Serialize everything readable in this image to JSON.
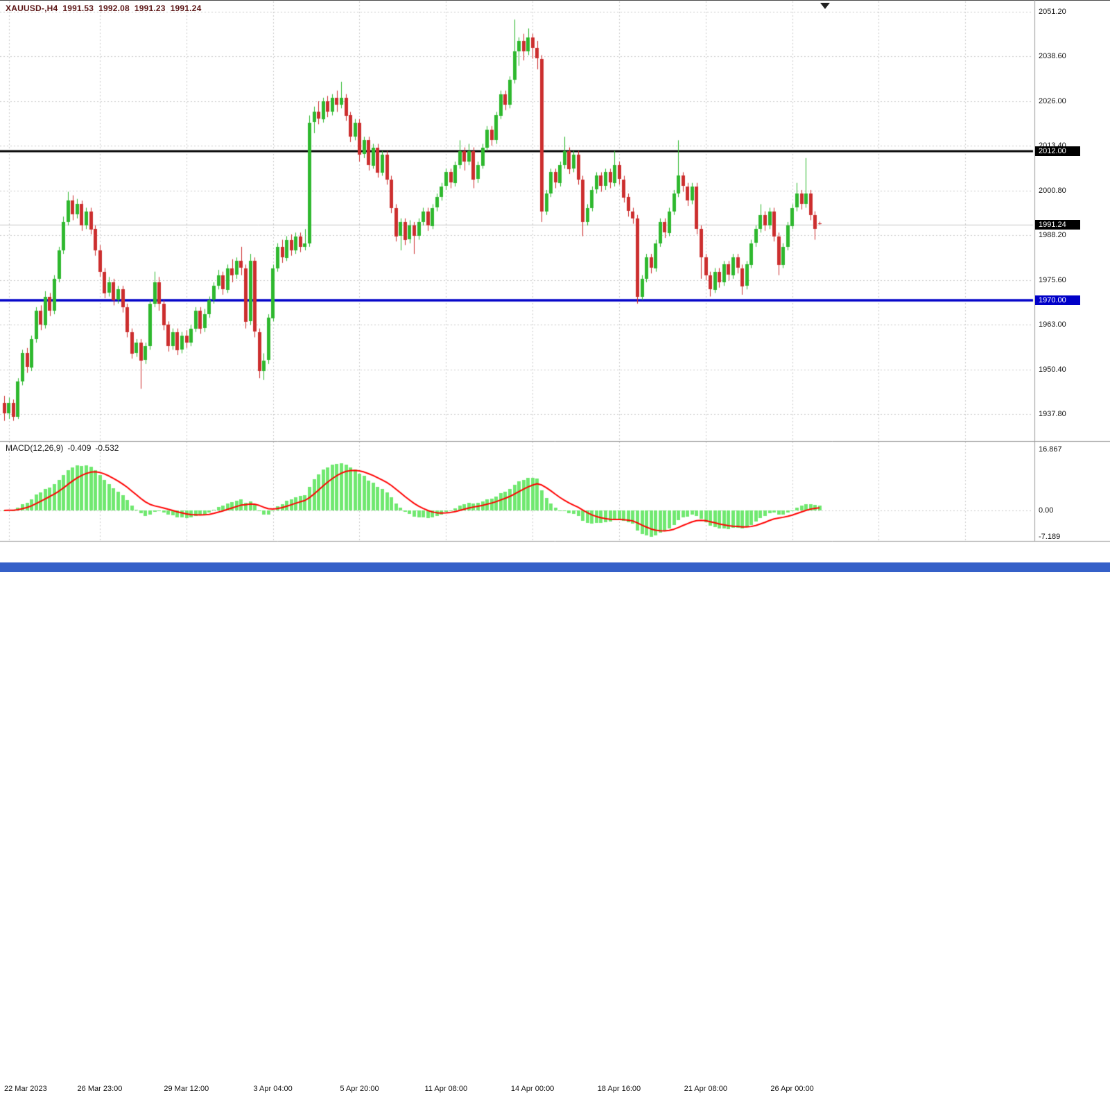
{
  "header": {
    "symbol_period": "XAUUSD-,H4",
    "open": "1991.53",
    "high": "1992.08",
    "low": "1991.23",
    "close": "1991.24",
    "color": "#5b1414"
  },
  "macd_header": {
    "label": "MACD(12,26,9)",
    "main_value": "-0.409",
    "signal_value": "-0.532"
  },
  "price_axis": {
    "labels": [
      "2051.20",
      "2038.60",
      "2026.00",
      "2013.40",
      "2000.80",
      "1988.20",
      "1975.60",
      "1963.00",
      "1950.40",
      "1937.80"
    ],
    "values": [
      2051.2,
      2038.6,
      2026.0,
      2013.4,
      2000.8,
      1988.2,
      1975.6,
      1963.0,
      1950.4,
      1937.8
    ]
  },
  "macd_axis": {
    "labels": [
      "16.867",
      "0.00",
      "-7.189"
    ],
    "values": [
      16.867,
      0,
      -7.189
    ]
  },
  "time_axis": {
    "labels": [
      "22 Mar 2023",
      "26 Mar 23:00",
      "29 Mar 12:00",
      "3 Apr 04:00",
      "5 Apr 20:00",
      "11 Apr 08:00",
      "14 Apr 00:00",
      "18 Apr 16:00",
      "21 Apr 08:00",
      "26 Apr 00:00"
    ],
    "indices": [
      1,
      21,
      40,
      59,
      78,
      97,
      116,
      135,
      154,
      173
    ],
    "future_grid_indices": [
      192,
      211
    ]
  },
  "levels": {
    "resistance": {
      "label": "2012.00",
      "price": 2012.0,
      "color": "#000000",
      "badge_bg": "#000000"
    },
    "current": {
      "label": "1991.24",
      "price": 1991.24,
      "color": "#bdbdbd",
      "badge_bg": "#000000"
    },
    "support": {
      "label": "1970.00",
      "price": 1970.0,
      "color": "#0000c8",
      "badge_bg": "#0000c8"
    }
  },
  "colors": {
    "background": "#ffffff",
    "grid": "#c9c9c9",
    "candle_up": "#2eb82e",
    "candle_down": "#cc2e2e",
    "macd_histogram": "#70e870",
    "macd_signal": "#ff0000",
    "separator": "#9a9a9a",
    "current_price_line": "#c4c4c4",
    "bottom_bar": "#3560c8",
    "axis_text": "#111111"
  },
  "chart_data": {
    "type": "candlestick",
    "title": "XAUUSD-,H4",
    "symbol": "XAUUSD-",
    "timeframe": "H4",
    "ylim": [
      1930.5,
      2054.5
    ],
    "y_tick_labels": [
      "2051.20",
      "2038.60",
      "2026.00",
      "2013.40",
      "2000.80",
      "1988.20",
      "1975.60",
      "1963.00",
      "1950.40",
      "1937.80"
    ],
    "x_tick_labels": [
      "22 Mar 2023",
      "26 Mar 23:00",
      "29 Mar 12:00",
      "3 Apr 04:00",
      "5 Apr 20:00",
      "11 Apr 08:00",
      "14 Apr 00:00",
      "18 Apr 16:00",
      "21 Apr 08:00",
      "26 Apr 00:00"
    ],
    "horizontal_lines": [
      {
        "price": 2012.0,
        "color": "#000000"
      },
      {
        "price": 1970.0,
        "color": "#0000c8"
      }
    ],
    "current_bar": {
      "open": 1991.53,
      "high": 1992.08,
      "low": 1991.23,
      "close": 1991.24
    },
    "ohlc": [
      [
        1941,
        1943,
        1936,
        1938
      ],
      [
        1938,
        1942.5,
        1936.5,
        1941
      ],
      [
        1941,
        1942,
        1936,
        1937
      ],
      [
        1937,
        1948,
        1936.5,
        1947
      ],
      [
        1947,
        1956,
        1946,
        1955
      ],
      [
        1955,
        1956.5,
        1949.5,
        1951
      ],
      [
        1951,
        1960,
        1950,
        1959
      ],
      [
        1959,
        1968,
        1958,
        1967
      ],
      [
        1967,
        1968.5,
        1961.5,
        1963
      ],
      [
        1963,
        1972.5,
        1962,
        1971
      ],
      [
        1971,
        1972,
        1965.5,
        1967
      ],
      [
        1967,
        1977,
        1966,
        1976
      ],
      [
        1976,
        1985,
        1975,
        1984
      ],
      [
        1984,
        1993.5,
        1983,
        1992
      ],
      [
        1992,
        2000.5,
        1991,
        1998
      ],
      [
        1998,
        1999.5,
        1992.5,
        1994
      ],
      [
        1994,
        1998.5,
        1993,
        1997
      ],
      [
        1997,
        1998,
        1989.5,
        1991
      ],
      [
        1991,
        1996,
        1990,
        1995
      ],
      [
        1995,
        1996,
        1988.5,
        1990
      ],
      [
        1990,
        1991,
        1982.5,
        1984
      ],
      [
        1984,
        1985.5,
        1976.5,
        1978
      ],
      [
        1978,
        1979,
        1970.5,
        1972
      ],
      [
        1972,
        1976.5,
        1971,
        1975
      ],
      [
        1975,
        1976,
        1968.5,
        1970
      ],
      [
        1970,
        1974,
        1969,
        1973
      ],
      [
        1973,
        1974,
        1966.5,
        1968
      ],
      [
        1968,
        1969,
        1959.5,
        1961
      ],
      [
        1961,
        1962,
        1953.5,
        1955
      ],
      [
        1955,
        1959,
        1954,
        1958
      ],
      [
        1958,
        1959,
        1945,
        1953
      ],
      [
        1953,
        1958,
        1952,
        1957
      ],
      [
        1957,
        1970,
        1956,
        1969
      ],
      [
        1969,
        1978,
        1968,
        1975
      ],
      [
        1975,
        1976.5,
        1967,
        1969
      ],
      [
        1969,
        1970,
        1961.5,
        1963
      ],
      [
        1963,
        1964,
        1955.5,
        1957
      ],
      [
        1957,
        1962,
        1956,
        1961
      ],
      [
        1961,
        1962,
        1954.5,
        1956
      ],
      [
        1956,
        1961,
        1955,
        1960
      ],
      [
        1960,
        1961.5,
        1956.5,
        1958
      ],
      [
        1958,
        1963,
        1957,
        1962
      ],
      [
        1962,
        1968,
        1961,
        1967
      ],
      [
        1967,
        1968,
        1960.5,
        1962
      ],
      [
        1962,
        1967.5,
        1961,
        1966
      ],
      [
        1966,
        1971,
        1965,
        1970
      ],
      [
        1970,
        1975,
        1969,
        1974
      ],
      [
        1974,
        1978.5,
        1973,
        1977
      ],
      [
        1977,
        1978,
        1971.5,
        1973
      ],
      [
        1973,
        1980,
        1972,
        1979
      ],
      [
        1979,
        1981.5,
        1975,
        1977
      ],
      [
        1977,
        1982,
        1976,
        1981
      ],
      [
        1981,
        1985,
        1977,
        1979
      ],
      [
        1979,
        1980,
        1962,
        1964
      ],
      [
        1964,
        1983,
        1963,
        1981
      ],
      [
        1981,
        1982,
        1959.5,
        1961
      ],
      [
        1961,
        1962,
        1948,
        1950
      ],
      [
        1950,
        1955,
        1947.5,
        1953
      ],
      [
        1953,
        1966,
        1952,
        1965
      ],
      [
        1965,
        1980,
        1964,
        1979
      ],
      [
        1979,
        1986,
        1978,
        1985
      ],
      [
        1985,
        1987,
        1980.5,
        1982
      ],
      [
        1982,
        1988,
        1981,
        1987
      ],
      [
        1987,
        1988.5,
        1982.5,
        1984
      ],
      [
        1984,
        1989,
        1983,
        1988
      ],
      [
        1988,
        1989,
        1983.5,
        1985
      ],
      [
        1985,
        1990,
        1984,
        1986
      ],
      [
        1986,
        2022,
        1985,
        2020
      ],
      [
        2020,
        2024.5,
        2017,
        2023
      ],
      [
        2023,
        2026,
        2019.5,
        2021
      ],
      [
        2021,
        2027,
        2020,
        2026
      ],
      [
        2026,
        2027.5,
        2021.5,
        2023
      ],
      [
        2023,
        2028,
        2022,
        2027
      ],
      [
        2027,
        2029,
        2023,
        2025
      ],
      [
        2025,
        2031.5,
        2024,
        2027
      ],
      [
        2027,
        2028,
        2020.5,
        2022
      ],
      [
        2022,
        2023,
        2014.5,
        2016
      ],
      [
        2016,
        2021,
        2015,
        2020
      ],
      [
        2020,
        2021,
        2009,
        2011
      ],
      [
        2011,
        2016,
        2010,
        2015
      ],
      [
        2015,
        2016,
        2006.5,
        2008
      ],
      [
        2008,
        2014,
        2007,
        2013
      ],
      [
        2013,
        2014,
        2004.5,
        2006
      ],
      [
        2006,
        2012,
        2005,
        2011
      ],
      [
        2011,
        2012,
        2002.5,
        2004
      ],
      [
        2004,
        2005,
        1994.5,
        1996
      ],
      [
        1996,
        1997,
        1986.5,
        1988
      ],
      [
        1988,
        1993,
        1984,
        1992
      ],
      [
        1992,
        1993,
        1985.5,
        1987
      ],
      [
        1987,
        1992.5,
        1986,
        1991
      ],
      [
        1991,
        1992,
        1983,
        1988
      ],
      [
        1988,
        1993,
        1987,
        1992
      ],
      [
        1992,
        1996,
        1991,
        1995
      ],
      [
        1995,
        1996,
        1989.5,
        1991
      ],
      [
        1991,
        1997,
        1990,
        1996
      ],
      [
        1996,
        2000,
        1995,
        1999
      ],
      [
        1999,
        2003,
        1998,
        2002
      ],
      [
        2002,
        2007,
        2001,
        2006
      ],
      [
        2006,
        2007,
        2001.5,
        2003
      ],
      [
        2003,
        2009,
        2002,
        2008
      ],
      [
        2008,
        2015,
        2007,
        2012
      ],
      [
        2012,
        2013,
        2006.5,
        2009
      ],
      [
        2009,
        2014,
        2008,
        2012
      ],
      [
        2012,
        2013,
        2001.5,
        2004
      ],
      [
        2004,
        2009,
        2003,
        2008
      ],
      [
        2008,
        2014,
        2007,
        2013
      ],
      [
        2013,
        2019,
        2012,
        2018
      ],
      [
        2018,
        2019,
        2013.5,
        2015
      ],
      [
        2015,
        2023,
        2014,
        2022
      ],
      [
        2022,
        2029,
        2021,
        2028
      ],
      [
        2028,
        2029,
        2023.5,
        2025
      ],
      [
        2025,
        2033,
        2024,
        2032
      ],
      [
        2032,
        2049,
        2031,
        2040
      ],
      [
        2040,
        2044,
        2036,
        2043
      ],
      [
        2043,
        2045,
        2037.5,
        2040
      ],
      [
        2040,
        2046.5,
        2039,
        2044
      ],
      [
        2044,
        2045,
        2038,
        2041
      ],
      [
        2041,
        2043,
        2035,
        2038
      ],
      [
        2038,
        2039,
        1992,
        1995
      ],
      [
        1995,
        2001,
        1994,
        2000
      ],
      [
        2000,
        2007,
        1999,
        2006
      ],
      [
        2006,
        2007,
        2001.5,
        2003
      ],
      [
        2003,
        2009,
        2002,
        2008
      ],
      [
        2008,
        2016,
        2007,
        2012
      ],
      [
        2012,
        2013,
        2005.5,
        2007
      ],
      [
        2007,
        2012,
        2006,
        2011
      ],
      [
        2011,
        2012,
        2002.5,
        2004
      ],
      [
        2004,
        2005,
        1988,
        1992
      ],
      [
        1992,
        1997,
        1991,
        1996
      ],
      [
        1996,
        2002,
        1995,
        2001
      ],
      [
        2001,
        2006,
        2000,
        2005
      ],
      [
        2005,
        2006,
        2000.5,
        2002
      ],
      [
        2002,
        2007,
        2001,
        2006
      ],
      [
        2006,
        2007,
        2001.5,
        2003
      ],
      [
        2003,
        2012,
        2002,
        2008
      ],
      [
        2008,
        2009,
        2002.5,
        2004
      ],
      [
        2004,
        2005,
        1997.5,
        1999
      ],
      [
        1999,
        2000,
        1993.5,
        1995
      ],
      [
        1995,
        1996,
        1991.5,
        1993
      ],
      [
        1993,
        1994,
        1969,
        1971
      ],
      [
        1971,
        1977,
        1970,
        1976
      ],
      [
        1976,
        1983,
        1975,
        1982
      ],
      [
        1982,
        1983,
        1977.5,
        1979
      ],
      [
        1979,
        1987,
        1978,
        1986
      ],
      [
        1986,
        1993,
        1985,
        1992
      ],
      [
        1992,
        1993,
        1987.5,
        1989
      ],
      [
        1989,
        1996,
        1988,
        1995
      ],
      [
        1995,
        2001,
        1994,
        2000
      ],
      [
        2000,
        2015,
        1999,
        2005
      ],
      [
        2005,
        2006,
        2000.5,
        2002
      ],
      [
        2002,
        2003,
        1996.5,
        1998
      ],
      [
        1998,
        2003,
        1997,
        2002
      ],
      [
        2002,
        2003,
        1988.5,
        1990
      ],
      [
        1990,
        1991,
        1976,
        1982
      ],
      [
        1982,
        1983,
        1975.5,
        1977
      ],
      [
        1977,
        1978,
        1971,
        1973
      ],
      [
        1973,
        1979,
        1972,
        1978
      ],
      [
        1978,
        1979,
        1973.5,
        1975
      ],
      [
        1975,
        1981,
        1974,
        1980
      ],
      [
        1980,
        1981,
        1975.5,
        1977
      ],
      [
        1977,
        1983,
        1976,
        1982
      ],
      [
        1982,
        1983,
        1977.5,
        1979
      ],
      [
        1979,
        1980,
        1971.5,
        1974
      ],
      [
        1974,
        1981,
        1973,
        1980
      ],
      [
        1980,
        1987,
        1979,
        1986
      ],
      [
        1986,
        1991,
        1985,
        1990
      ],
      [
        1990,
        1997,
        1989,
        1994
      ],
      [
        1994,
        1995,
        1989.5,
        1991
      ],
      [
        1991,
        1996,
        1990,
        1995
      ],
      [
        1995,
        1996,
        1986.5,
        1988
      ],
      [
        1988,
        1989,
        1977,
        1980
      ],
      [
        1980,
        1986,
        1979,
        1985
      ],
      [
        1985,
        1992,
        1984,
        1991
      ],
      [
        1991,
        1997,
        1990,
        1996
      ],
      [
        1996,
        2003,
        1995,
        2000
      ],
      [
        2000,
        2001,
        1995.5,
        1997
      ],
      [
        1997,
        2010,
        1996,
        2000
      ],
      [
        2000,
        2001,
        1992.5,
        1994
      ],
      [
        1994,
        1995,
        1987,
        1990
      ],
      [
        1991.53,
        1992.08,
        1991.23,
        1991.24
      ]
    ],
    "indicator": {
      "type": "MACD",
      "fast": 12,
      "slow": 26,
      "signal": 9,
      "display_max": 16.867,
      "display_min": -7.189,
      "current_main": -0.409,
      "current_signal": -0.532
    }
  }
}
